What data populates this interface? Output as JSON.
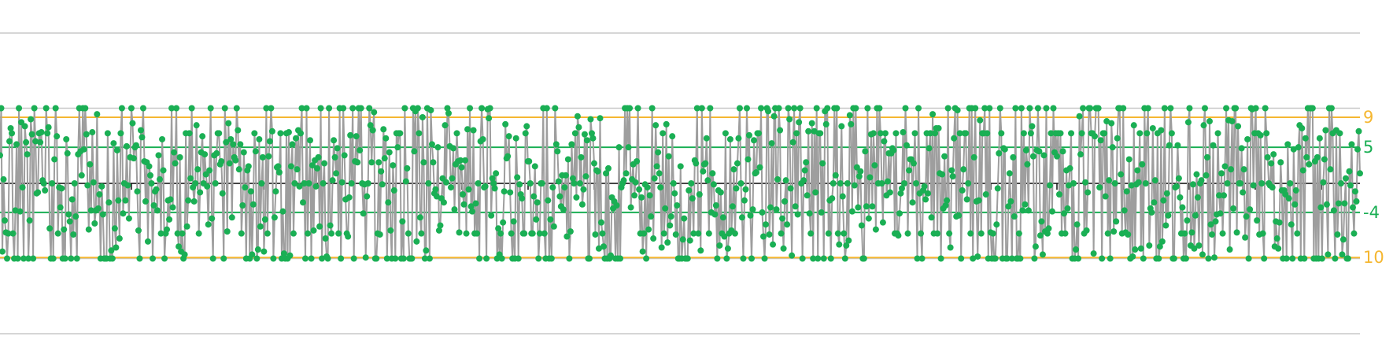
{
  "chart_data": {
    "type": "line",
    "title": "",
    "xlabel": "",
    "ylabel": "",
    "point_count": 1150,
    "ylim": [
      -15,
      15
    ],
    "grid": true,
    "gridlines": [
      -15,
      -7.5,
      0,
      7.5,
      15
    ],
    "center_line": 0,
    "levels": [
      -7.5,
      -5,
      0,
      5,
      7.5
    ],
    "reference_lines": [
      {
        "label": "9",
        "value": 6.6,
        "color": "#F5B731"
      },
      {
        "label": "5",
        "value": 3.6,
        "color": "#1AAF54"
      },
      {
        "label": "-4",
        "value": -2.9,
        "color": "#1AAF54"
      },
      {
        "label": "10",
        "value": -7.4,
        "color": "#F5B731"
      }
    ],
    "colors": {
      "line": "#9E9E9E",
      "marker": "#1AAF54",
      "grid": "#C8C8C8",
      "center": "#111111"
    }
  }
}
